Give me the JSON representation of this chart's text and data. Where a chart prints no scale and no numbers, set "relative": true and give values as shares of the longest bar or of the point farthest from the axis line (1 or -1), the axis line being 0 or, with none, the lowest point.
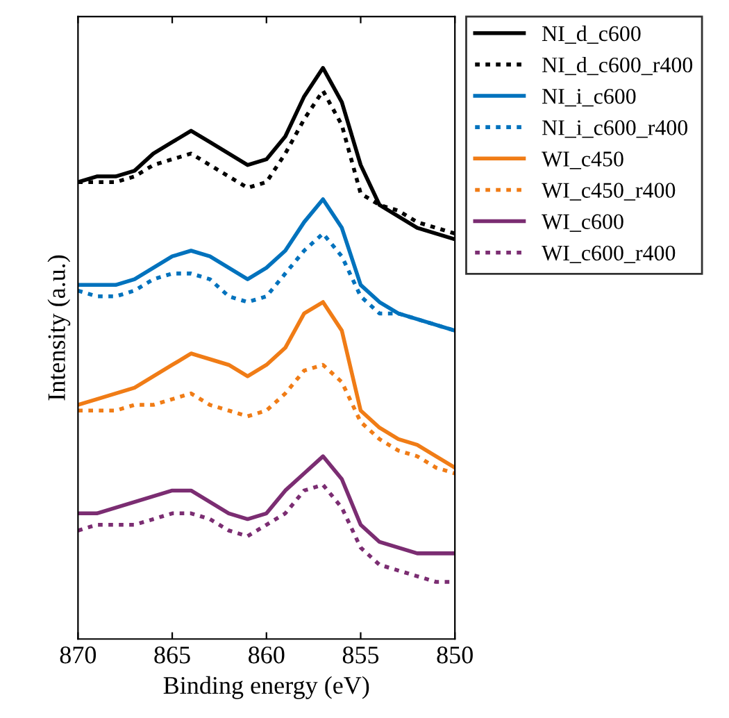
{
  "chart_data": {
    "type": "line",
    "xlabel": "Binding energy (eV)",
    "ylabel": "Intensity (a.u.)",
    "relative": true,
    "tick_labels": "x",
    "x": [
      870,
      869,
      868,
      867,
      866,
      865,
      864,
      863,
      862,
      861,
      860,
      859,
      858,
      857,
      856,
      855,
      854,
      853,
      852,
      851,
      850
    ],
    "xlim": [
      870,
      850
    ],
    "xticks": [
      870,
      865,
      860,
      855,
      850
    ],
    "grid": false,
    "legend": "top right",
    "marker": "none",
    "series": [
      {
        "name": "NI_d_c600",
        "color": "#000000",
        "line_style": "solid",
        "values": [
          0.8,
          0.81,
          0.81,
          0.82,
          0.85,
          0.87,
          0.89,
          0.87,
          0.85,
          0.83,
          0.84,
          0.88,
          0.95,
          1.0,
          0.94,
          0.83,
          0.76,
          0.74,
          0.72,
          0.71,
          0.7
        ]
      },
      {
        "name": "NI_d_c600_r400",
        "color": "#000000",
        "line_style": "dotted",
        "values": [
          0.8,
          0.8,
          0.8,
          0.81,
          0.83,
          0.84,
          0.85,
          0.83,
          0.81,
          0.79,
          0.8,
          0.85,
          0.91,
          0.96,
          0.9,
          0.78,
          0.76,
          0.75,
          0.73,
          0.72,
          0.71
        ]
      },
      {
        "name": "NI_i_c600",
        "color": "#0072bd",
        "line_style": "solid",
        "values": [
          0.62,
          0.62,
          0.62,
          0.63,
          0.65,
          0.67,
          0.68,
          0.67,
          0.65,
          0.63,
          0.65,
          0.68,
          0.73,
          0.77,
          0.72,
          0.62,
          0.59,
          0.57,
          0.56,
          0.55,
          0.54
        ]
      },
      {
        "name": "NI_i_c600_r400",
        "color": "#0072bd",
        "line_style": "dotted",
        "values": [
          0.61,
          0.6,
          0.6,
          0.61,
          0.63,
          0.64,
          0.64,
          0.63,
          0.6,
          0.59,
          0.6,
          0.64,
          0.68,
          0.71,
          0.67,
          0.6,
          0.57,
          0.57,
          0.56,
          0.55,
          0.54
        ]
      },
      {
        "name": "WI_c450",
        "color": "#f07c16",
        "line_style": "solid",
        "values": [
          0.41,
          0.42,
          0.43,
          0.44,
          0.46,
          0.48,
          0.5,
          0.49,
          0.48,
          0.46,
          0.48,
          0.51,
          0.57,
          0.59,
          0.54,
          0.4,
          0.37,
          0.35,
          0.34,
          0.32,
          0.3
        ]
      },
      {
        "name": "WI_c450_r400",
        "color": "#f07c16",
        "line_style": "dotted",
        "values": [
          0.4,
          0.4,
          0.4,
          0.41,
          0.41,
          0.42,
          0.43,
          0.41,
          0.4,
          0.39,
          0.4,
          0.43,
          0.47,
          0.48,
          0.45,
          0.38,
          0.35,
          0.33,
          0.32,
          0.3,
          0.29
        ]
      },
      {
        "name": "WI_c600",
        "color": "#7b2d72",
        "line_style": "solid",
        "values": [
          0.22,
          0.22,
          0.23,
          0.24,
          0.25,
          0.26,
          0.26,
          0.24,
          0.22,
          0.21,
          0.22,
          0.26,
          0.29,
          0.32,
          0.28,
          0.2,
          0.17,
          0.16,
          0.15,
          0.15,
          0.15
        ]
      },
      {
        "name": "WI_c600_r400",
        "color": "#7b2d72",
        "line_style": "dotted",
        "values": [
          0.19,
          0.2,
          0.2,
          0.2,
          0.21,
          0.22,
          0.22,
          0.21,
          0.19,
          0.18,
          0.2,
          0.22,
          0.26,
          0.27,
          0.23,
          0.16,
          0.13,
          0.12,
          0.11,
          0.1,
          0.1
        ]
      }
    ]
  }
}
